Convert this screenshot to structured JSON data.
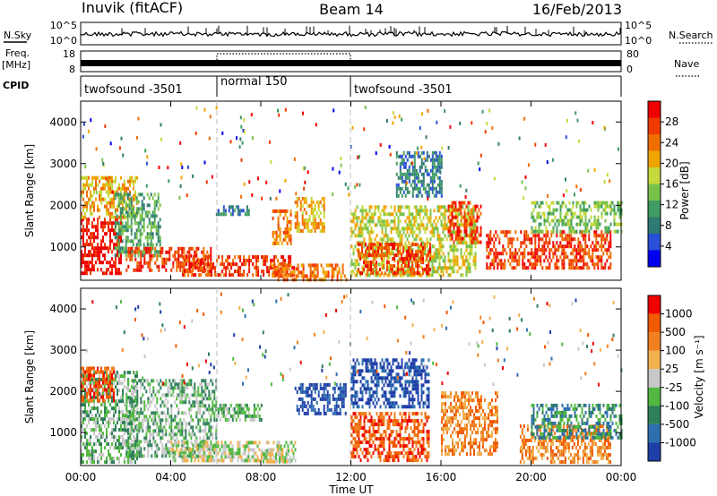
{
  "header": {
    "station": "Inuvik (fitACF)",
    "beam": "Beam 14",
    "date": "16/Feb/2013"
  },
  "noise_panel": {
    "left_label": "N.Sky",
    "right_label": "N.Search",
    "left_ticks": [
      "10^5",
      "10^0"
    ],
    "right_ticks": [
      "10^5",
      "10^0"
    ]
  },
  "freq_panel": {
    "left_label_top": "Freq.",
    "left_label_bottom": "[MHz]",
    "right_label": "Nave",
    "left_ticks": [
      "18",
      "8"
    ],
    "right_ticks": [
      "80",
      "0"
    ],
    "cpid_label": "CPID",
    "cpid_segments": [
      {
        "label": "twofsound -3501",
        "start_h": 0,
        "end_h": 6
      },
      {
        "label": "normal 150",
        "start_h": 6,
        "end_h": 12
      },
      {
        "label": "twofsound -3501",
        "start_h": 12,
        "end_h": 24
      }
    ]
  },
  "x_axis": {
    "label": "Time UT",
    "ticks": [
      "00:00",
      "04:00",
      "08:00",
      "12:00",
      "16:00",
      "20:00",
      "00:00"
    ],
    "tick_hours": [
      0,
      4,
      8,
      12,
      16,
      20,
      24
    ]
  },
  "power_panel": {
    "ylabel": "Slant Range [km]",
    "yticks": [
      "1000",
      "2000",
      "3000",
      "4000"
    ],
    "ytick_values": [
      1000,
      2000,
      3000,
      4000
    ],
    "colorbar_label": "Power [dB]",
    "colorbar_ticks": [
      "28",
      "24",
      "20",
      "16",
      "12",
      "8",
      "4"
    ],
    "colors": [
      "#0000f0",
      "#2a4fd8",
      "#2f7a72",
      "#3f9c62",
      "#79c24a",
      "#c6d83a",
      "#f0a400",
      "#f06e00",
      "#f03a00",
      "#f00000"
    ]
  },
  "velocity_panel": {
    "ylabel": "Slant Range [km]",
    "yticks": [
      "1000",
      "2000",
      "3000",
      "4000"
    ],
    "ytick_values": [
      1000,
      2000,
      3000,
      4000
    ],
    "colorbar_label": "Velocity [m s⁻¹]",
    "colorbar_ticks": [
      "1000",
      "500",
      "100",
      "25",
      "-25",
      "-100",
      "-500",
      "-1000"
    ],
    "colors": [
      "#1f3fa8",
      "#2e6fb0",
      "#2f7f5a",
      "#52b842",
      "#c8c8c8",
      "#f2b050",
      "#f08020",
      "#f05a00",
      "#f00000"
    ]
  },
  "chart_data": {
    "type": "heatmap",
    "x_range_h": [
      0,
      24
    ],
    "y_range_km": [
      200,
      4500
    ],
    "power_blobs": [
      {
        "t0": 0.0,
        "t1": 1.8,
        "r0": 400,
        "r1": 1700,
        "level": 9
      },
      {
        "t0": 0.0,
        "t1": 2.5,
        "r0": 1700,
        "r1": 2700,
        "level": 6
      },
      {
        "t0": 1.5,
        "t1": 3.5,
        "r0": 800,
        "r1": 2300,
        "level": 3
      },
      {
        "t0": 2.0,
        "t1": 5.8,
        "r0": 400,
        "r1": 1000,
        "level": 8
      },
      {
        "t0": 4.5,
        "t1": 9.5,
        "r0": 300,
        "r1": 800,
        "level": 8
      },
      {
        "t0": 8.5,
        "t1": 11.8,
        "r0": 250,
        "r1": 600,
        "level": 7
      },
      {
        "t0": 8.5,
        "t1": 9.3,
        "r0": 1100,
        "r1": 1900,
        "level": 7
      },
      {
        "t0": 9.5,
        "t1": 10.8,
        "r0": 1400,
        "r1": 2200,
        "level": 6
      },
      {
        "t0": 6.0,
        "t1": 7.5,
        "r0": 1800,
        "r1": 2000,
        "level": 2
      },
      {
        "t0": 12.0,
        "t1": 17.5,
        "r0": 300,
        "r1": 2000,
        "level": 5
      },
      {
        "t0": 12.3,
        "t1": 15.5,
        "r0": 400,
        "r1": 1100,
        "level": 8
      },
      {
        "t0": 16.3,
        "t1": 17.8,
        "r0": 1100,
        "r1": 2100,
        "level": 8
      },
      {
        "t0": 18.0,
        "t1": 23.5,
        "r0": 500,
        "r1": 1400,
        "level": 8
      },
      {
        "t0": 20.0,
        "t1": 24.0,
        "r0": 1400,
        "r1": 2100,
        "level": 4
      },
      {
        "t0": 14.0,
        "t1": 16.0,
        "r0": 2200,
        "r1": 3300,
        "level": 2
      }
    ],
    "velocity_blobs": [
      {
        "t0": 0.0,
        "t1": 2.5,
        "r0": 300,
        "r1": 2500,
        "level": 3
      },
      {
        "t0": 0.0,
        "t1": 1.5,
        "r0": 1800,
        "r1": 2600,
        "level": 7
      },
      {
        "t0": 2.0,
        "t1": 6.0,
        "r0": 400,
        "r1": 2300,
        "level": 3
      },
      {
        "t0": 4.0,
        "t1": 9.5,
        "r0": 300,
        "r1": 800,
        "level": 4
      },
      {
        "t0": 6.0,
        "t1": 8.0,
        "r0": 1300,
        "r1": 1700,
        "level": 3
      },
      {
        "t0": 9.5,
        "t1": 11.8,
        "r0": 1500,
        "r1": 2200,
        "level": 0
      },
      {
        "t0": 8.0,
        "t1": 9.5,
        "r0": 300,
        "r1": 600,
        "level": 4
      },
      {
        "t0": 12.0,
        "t1": 15.5,
        "r0": 300,
        "r1": 1500,
        "level": 7
      },
      {
        "t0": 12.0,
        "t1": 15.5,
        "r0": 1600,
        "r1": 2800,
        "level": 0
      },
      {
        "t0": 16.0,
        "t1": 18.5,
        "r0": 500,
        "r1": 2000,
        "level": 6
      },
      {
        "t0": 19.5,
        "t1": 23.5,
        "r0": 300,
        "r1": 1200,
        "level": 6
      },
      {
        "t0": 20.0,
        "t1": 24.0,
        "r0": 900,
        "r1": 1700,
        "level": 2
      }
    ]
  }
}
